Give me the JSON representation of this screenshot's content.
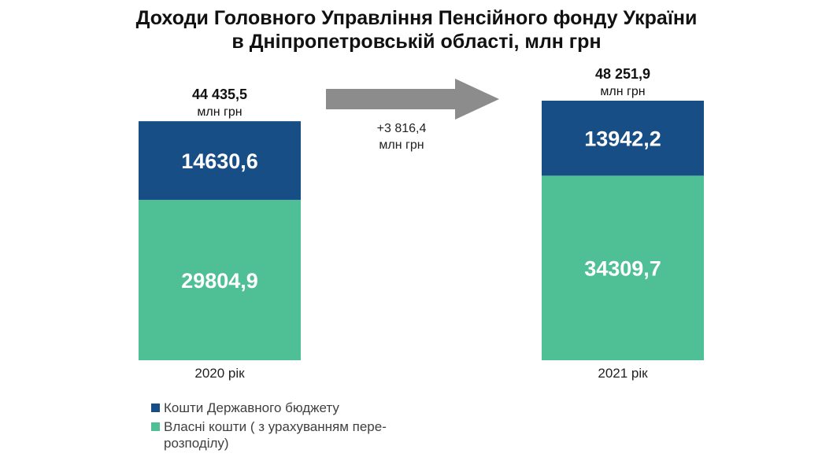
{
  "title_line1": "Доходи Головного Управління Пенсійного фонду України",
  "title_line2": "в Дніпропетровській області, млн грн",
  "colors": {
    "budget": "#174E86",
    "own": "#4FBF96",
    "arrow": "#8C8C8C"
  },
  "chart_data": {
    "type": "bar",
    "stacked": true,
    "categories": [
      "2020 рік",
      "2021 рік"
    ],
    "series": [
      {
        "name": "Власні кошти ( з урахуванням пере-розподілу)",
        "values": [
          29804.9,
          34309.7
        ],
        "labels": [
          "29804,9",
          "34309,7"
        ]
      },
      {
        "name": "Кошти Державного бюджету",
        "values": [
          14630.6,
          13942.2
        ],
        "labels": [
          "14630,6",
          "13942,2"
        ]
      }
    ],
    "totals": [
      {
        "value": "44 435,5",
        "unit": "млн грн"
      },
      {
        "value": "48 251,9",
        "unit": "млн грн"
      }
    ],
    "change": {
      "value": "+3 816,4",
      "unit": "млн грн"
    },
    "ylim": [
      0,
      48251.9
    ],
    "grid": false,
    "legend_position": "bottom-left"
  },
  "legend": [
    {
      "label": "Кошти Державного бюджету"
    },
    {
      "label": "Власні кошти ( з урахуванням пере-розподілу)"
    }
  ]
}
